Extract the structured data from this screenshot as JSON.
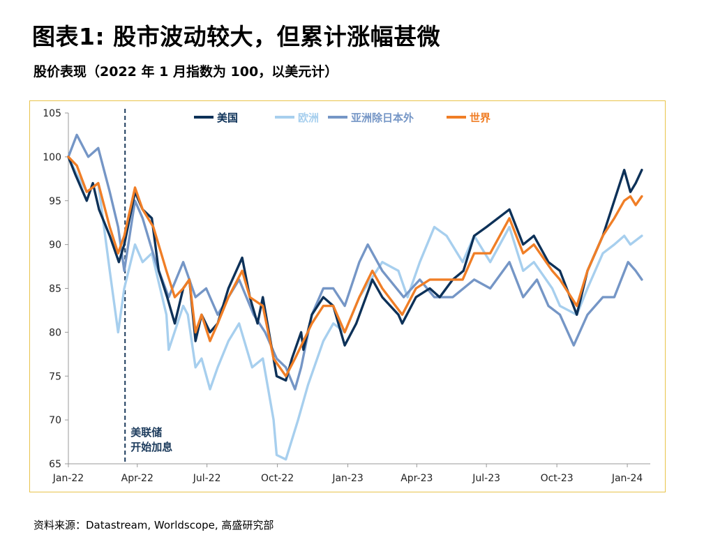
{
  "header": {
    "title": "图表1: 股市波动较大，但累计涨幅甚微",
    "subtitle": "股价表现（2022 年 1 月指数为 100，以美元计）"
  },
  "footer": {
    "source": "资料来源：Datastream, Worldscope, 高盛研究部"
  },
  "colors": {
    "us": "#0d3158",
    "europe": "#a7cfee",
    "asia_ex_japan": "#7596c6",
    "world": "#f07e26",
    "frame": "#e8c34a",
    "annotation_line": "#1c3b5c"
  },
  "chart_data": {
    "type": "line",
    "title": "",
    "xlabel": "",
    "ylabel": "",
    "ylim": [
      65,
      105
    ],
    "yticks": [
      65,
      70,
      75,
      80,
      85,
      90,
      95,
      100,
      105
    ],
    "xlim": [
      "2022-01-01",
      "2024-01-31"
    ],
    "xticks": [
      {
        "date": "2022-01-01",
        "label": "Jan-22"
      },
      {
        "date": "2022-04-01",
        "label": "Apr-22"
      },
      {
        "date": "2022-07-01",
        "label": "Jul-22"
      },
      {
        "date": "2022-10-01",
        "label": "Oct-22"
      },
      {
        "date": "2023-01-01",
        "label": "Jan-23"
      },
      {
        "date": "2023-04-01",
        "label": "Apr-23"
      },
      {
        "date": "2023-07-01",
        "label": "Jul-23"
      },
      {
        "date": "2023-10-01",
        "label": "Oct-23"
      },
      {
        "date": "2024-01-01",
        "label": "Jan-24"
      }
    ],
    "legend_position": "top",
    "grid": false,
    "annotation": {
      "date": "2022-03-16",
      "lines": [
        "美联储",
        "开始加息"
      ]
    },
    "series": [
      {
        "name": "美国",
        "key": "us",
        "points": [
          [
            "2022-01-01",
            100
          ],
          [
            "2022-01-10",
            98
          ],
          [
            "2022-01-25",
            95
          ],
          [
            "2022-02-02",
            97
          ],
          [
            "2022-02-10",
            94
          ],
          [
            "2022-02-24",
            91
          ],
          [
            "2022-03-08",
            88
          ],
          [
            "2022-03-15",
            90
          ],
          [
            "2022-03-29",
            96
          ],
          [
            "2022-04-08",
            94
          ],
          [
            "2022-04-20",
            93
          ],
          [
            "2022-04-29",
            87
          ],
          [
            "2022-05-10",
            84
          ],
          [
            "2022-05-20",
            81
          ],
          [
            "2022-05-31",
            85
          ],
          [
            "2022-06-08",
            86
          ],
          [
            "2022-06-16",
            79
          ],
          [
            "2022-06-24",
            82
          ],
          [
            "2022-07-05",
            80
          ],
          [
            "2022-07-15",
            81
          ],
          [
            "2022-07-29",
            85
          ],
          [
            "2022-08-16",
            88.5
          ],
          [
            "2022-08-26",
            84
          ],
          [
            "2022-09-05",
            81
          ],
          [
            "2022-09-12",
            84
          ],
          [
            "2022-09-20",
            80
          ],
          [
            "2022-09-30",
            75
          ],
          [
            "2022-10-12",
            74.5
          ],
          [
            "2022-10-20",
            77
          ],
          [
            "2022-11-01",
            80
          ],
          [
            "2022-11-04",
            78
          ],
          [
            "2022-11-15",
            82
          ],
          [
            "2022-11-30",
            84
          ],
          [
            "2022-12-13",
            83
          ],
          [
            "2022-12-28",
            78.5
          ],
          [
            "2023-01-12",
            81
          ],
          [
            "2023-02-02",
            86
          ],
          [
            "2023-02-15",
            84
          ],
          [
            "2023-03-08",
            82
          ],
          [
            "2023-03-13",
            81
          ],
          [
            "2023-03-31",
            84
          ],
          [
            "2023-04-18",
            85
          ],
          [
            "2023-05-01",
            84
          ],
          [
            "2023-05-18",
            86
          ],
          [
            "2023-06-01",
            87
          ],
          [
            "2023-06-15",
            91
          ],
          [
            "2023-07-01",
            92
          ],
          [
            "2023-07-31",
            94
          ],
          [
            "2023-08-18",
            90
          ],
          [
            "2023-09-01",
            91
          ],
          [
            "2023-09-20",
            88
          ],
          [
            "2023-10-05",
            87
          ],
          [
            "2023-10-27",
            82
          ],
          [
            "2023-11-10",
            87
          ],
          [
            "2023-11-30",
            91
          ],
          [
            "2023-12-15",
            95
          ],
          [
            "2023-12-28",
            98.5
          ],
          [
            "2024-01-05",
            96
          ],
          [
            "2024-01-12",
            97
          ],
          [
            "2024-01-20",
            98.5
          ]
        ]
      },
      {
        "name": "欧洲",
        "key": "europe",
        "points": [
          [
            "2022-01-01",
            100
          ],
          [
            "2022-01-12",
            98
          ],
          [
            "2022-01-25",
            96
          ],
          [
            "2022-02-09",
            97
          ],
          [
            "2022-02-24",
            87
          ],
          [
            "2022-03-07",
            80
          ],
          [
            "2022-03-15",
            85
          ],
          [
            "2022-03-29",
            90
          ],
          [
            "2022-04-08",
            88
          ],
          [
            "2022-04-20",
            89
          ],
          [
            "2022-05-09",
            82
          ],
          [
            "2022-05-12",
            78
          ],
          [
            "2022-05-31",
            83
          ],
          [
            "2022-06-06",
            82
          ],
          [
            "2022-06-16",
            76
          ],
          [
            "2022-06-24",
            77
          ],
          [
            "2022-07-05",
            73.5
          ],
          [
            "2022-07-15",
            76
          ],
          [
            "2022-07-29",
            79
          ],
          [
            "2022-08-12",
            81
          ],
          [
            "2022-08-29",
            76
          ],
          [
            "2022-09-12",
            77
          ],
          [
            "2022-09-26",
            70
          ],
          [
            "2022-09-30",
            66
          ],
          [
            "2022-10-12",
            65.5
          ],
          [
            "2022-10-28",
            70
          ],
          [
            "2022-11-10",
            74
          ],
          [
            "2022-11-30",
            79
          ],
          [
            "2022-12-13",
            81
          ],
          [
            "2022-12-28",
            80
          ],
          [
            "2023-01-16",
            84
          ],
          [
            "2023-02-15",
            88
          ],
          [
            "2023-03-08",
            87
          ],
          [
            "2023-03-20",
            84
          ],
          [
            "2023-04-05",
            88
          ],
          [
            "2023-04-24",
            92
          ],
          [
            "2023-05-10",
            91
          ],
          [
            "2023-05-31",
            88
          ],
          [
            "2023-06-15",
            91
          ],
          [
            "2023-07-06",
            88
          ],
          [
            "2023-07-31",
            92
          ],
          [
            "2023-08-18",
            87
          ],
          [
            "2023-09-01",
            88
          ],
          [
            "2023-09-25",
            85
          ],
          [
            "2023-10-05",
            83
          ],
          [
            "2023-10-27",
            82
          ],
          [
            "2023-11-10",
            85
          ],
          [
            "2023-11-30",
            89
          ],
          [
            "2023-12-15",
            90
          ],
          [
            "2023-12-28",
            91
          ],
          [
            "2024-01-05",
            90
          ],
          [
            "2024-01-20",
            91
          ]
        ]
      },
      {
        "name": "亚洲除日本外",
        "key": "asia_ex_japan",
        "points": [
          [
            "2022-01-01",
            100
          ],
          [
            "2022-01-12",
            102.5
          ],
          [
            "2022-01-27",
            100
          ],
          [
            "2022-02-09",
            101
          ],
          [
            "2022-02-24",
            96
          ],
          [
            "2022-03-07",
            92
          ],
          [
            "2022-03-15",
            87
          ],
          [
            "2022-03-29",
            95
          ],
          [
            "2022-04-08",
            93
          ],
          [
            "2022-04-25",
            88
          ],
          [
            "2022-05-12",
            84
          ],
          [
            "2022-05-31",
            88
          ],
          [
            "2022-06-16",
            84
          ],
          [
            "2022-06-30",
            85
          ],
          [
            "2022-07-15",
            82
          ],
          [
            "2022-07-29",
            84
          ],
          [
            "2022-08-12",
            86
          ],
          [
            "2022-08-31",
            82
          ],
          [
            "2022-09-15",
            80
          ],
          [
            "2022-09-30",
            77
          ],
          [
            "2022-10-12",
            76
          ],
          [
            "2022-10-24",
            73.5
          ],
          [
            "2022-11-01",
            76
          ],
          [
            "2022-11-15",
            82
          ],
          [
            "2022-11-30",
            85
          ],
          [
            "2022-12-13",
            85
          ],
          [
            "2022-12-28",
            83
          ],
          [
            "2023-01-16",
            88
          ],
          [
            "2023-01-27",
            90
          ],
          [
            "2023-02-15",
            87
          ],
          [
            "2023-03-15",
            84
          ],
          [
            "2023-04-05",
            86
          ],
          [
            "2023-04-24",
            84
          ],
          [
            "2023-05-18",
            84
          ],
          [
            "2023-06-15",
            86
          ],
          [
            "2023-07-06",
            85
          ],
          [
            "2023-07-31",
            88
          ],
          [
            "2023-08-18",
            84
          ],
          [
            "2023-09-05",
            86
          ],
          [
            "2023-09-20",
            83
          ],
          [
            "2023-10-05",
            82
          ],
          [
            "2023-10-23",
            78.5
          ],
          [
            "2023-11-10",
            82
          ],
          [
            "2023-11-30",
            84
          ],
          [
            "2023-12-15",
            84
          ],
          [
            "2024-01-02",
            88
          ],
          [
            "2024-01-12",
            87
          ],
          [
            "2024-01-20",
            86
          ]
        ]
      },
      {
        "name": "世界",
        "key": "world",
        "points": [
          [
            "2022-01-01",
            100
          ],
          [
            "2022-01-12",
            99
          ],
          [
            "2022-01-25",
            96
          ],
          [
            "2022-02-09",
            97
          ],
          [
            "2022-02-24",
            92
          ],
          [
            "2022-03-07",
            89
          ],
          [
            "2022-03-15",
            91
          ],
          [
            "2022-03-29",
            96.5
          ],
          [
            "2022-04-08",
            94
          ],
          [
            "2022-04-22",
            92
          ],
          [
            "2022-05-09",
            87
          ],
          [
            "2022-05-20",
            84
          ],
          [
            "2022-05-31",
            85
          ],
          [
            "2022-06-08",
            86
          ],
          [
            "2022-06-16",
            80
          ],
          [
            "2022-06-24",
            82
          ],
          [
            "2022-07-05",
            79
          ],
          [
            "2022-07-15",
            81
          ],
          [
            "2022-07-29",
            84
          ],
          [
            "2022-08-16",
            87
          ],
          [
            "2022-08-26",
            84
          ],
          [
            "2022-09-12",
            83
          ],
          [
            "2022-09-26",
            77
          ],
          [
            "2022-10-12",
            75
          ],
          [
            "2022-10-24",
            77
          ],
          [
            "2022-11-04",
            79
          ],
          [
            "2022-11-15",
            81
          ],
          [
            "2022-11-30",
            83
          ],
          [
            "2022-12-13",
            83
          ],
          [
            "2022-12-28",
            80
          ],
          [
            "2023-01-16",
            84
          ],
          [
            "2023-02-02",
            87
          ],
          [
            "2023-02-15",
            85
          ],
          [
            "2023-03-13",
            82
          ],
          [
            "2023-03-31",
            85
          ],
          [
            "2023-04-18",
            86
          ],
          [
            "2023-05-01",
            86
          ],
          [
            "2023-05-31",
            86
          ],
          [
            "2023-06-15",
            89
          ],
          [
            "2023-07-06",
            89
          ],
          [
            "2023-07-31",
            93
          ],
          [
            "2023-08-18",
            89
          ],
          [
            "2023-09-01",
            90
          ],
          [
            "2023-09-25",
            87
          ],
          [
            "2023-10-05",
            86
          ],
          [
            "2023-10-27",
            83
          ],
          [
            "2023-11-10",
            87
          ],
          [
            "2023-11-30",
            91
          ],
          [
            "2023-12-15",
            93
          ],
          [
            "2023-12-28",
            95
          ],
          [
            "2024-01-05",
            95.5
          ],
          [
            "2024-01-12",
            94.5
          ],
          [
            "2024-01-20",
            95.5
          ]
        ]
      }
    ]
  }
}
